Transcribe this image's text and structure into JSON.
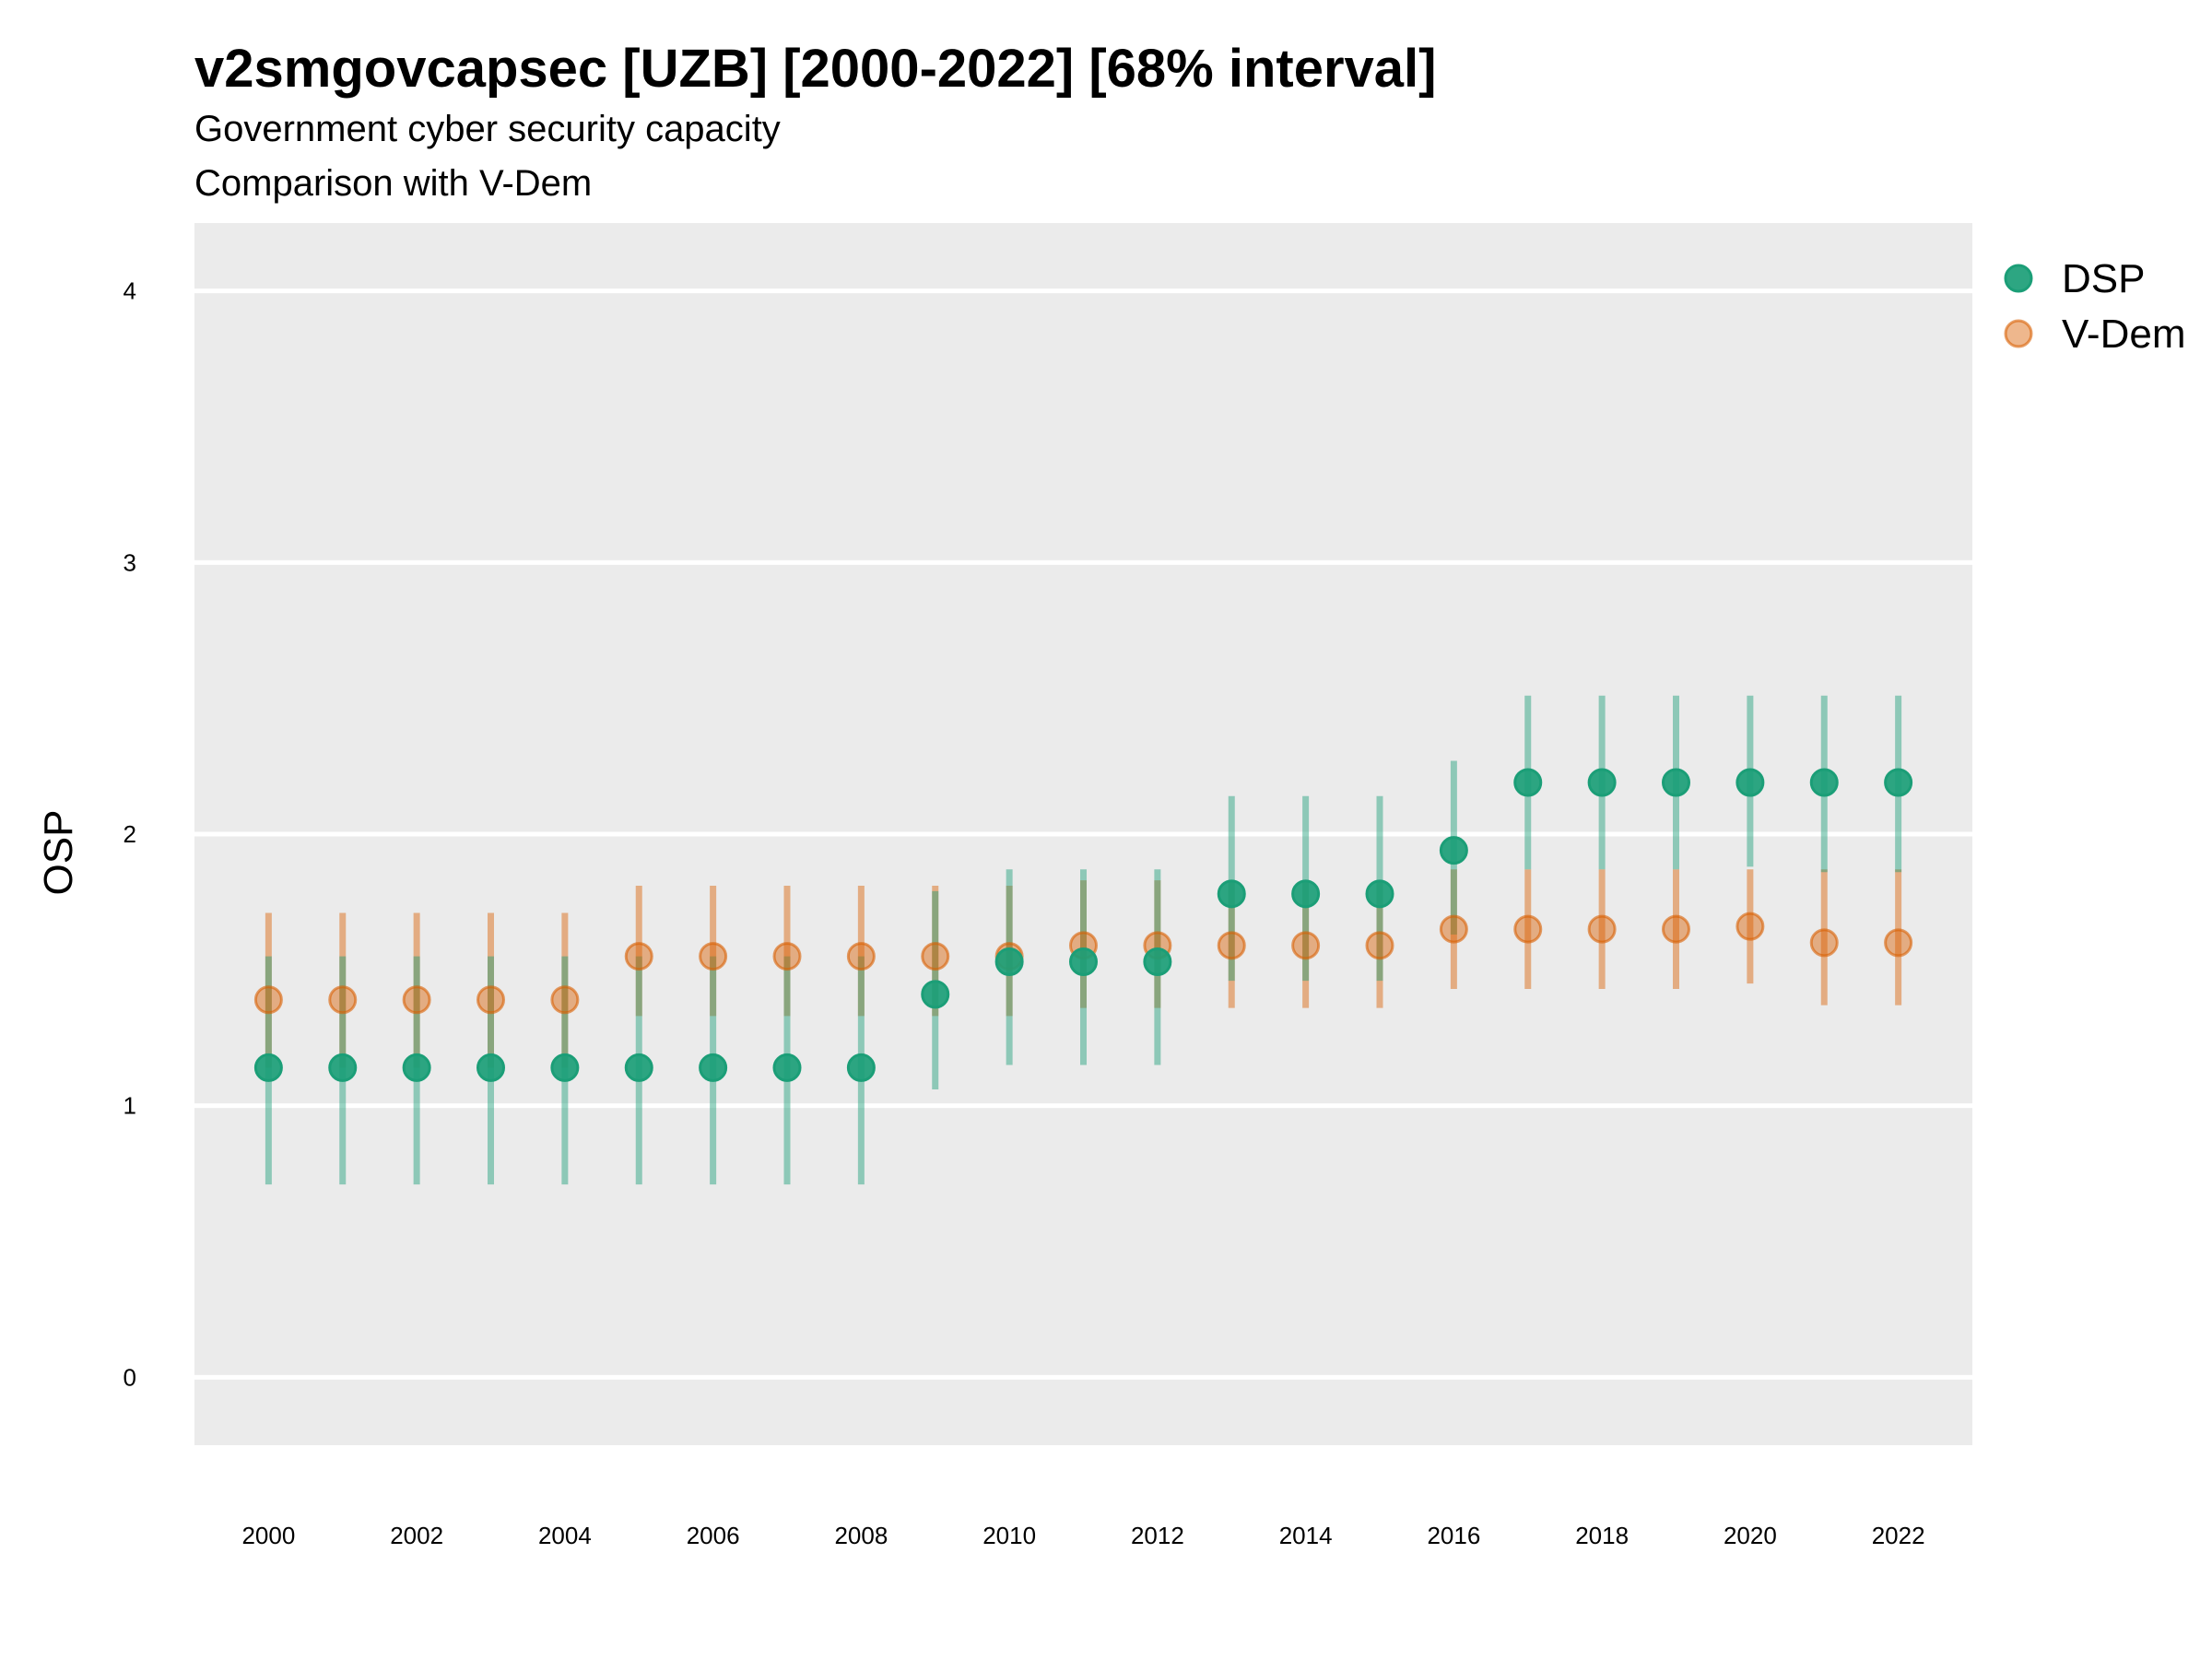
{
  "chart_data": {
    "type": "scatter",
    "title": "v2smgovcapsec [UZB] [2000-2022] [68% interval]",
    "subtitle": "Government cyber security capacity",
    "subtitle2": "Comparison with V-Dem",
    "xlabel": "",
    "ylabel": "OSP",
    "xlim": [
      1999,
      2023
    ],
    "ylim": [
      -0.25,
      4.25
    ],
    "x_ticks": [
      "2000",
      "2002",
      "2004",
      "2006",
      "2008",
      "2010",
      "2012",
      "2014",
      "2016",
      "2018",
      "2020",
      "2022"
    ],
    "y_ticks": [
      "0",
      "1",
      "2",
      "3",
      "4"
    ],
    "grid": true,
    "legend_position": "right",
    "x": [
      2000,
      2001,
      2002,
      2003,
      2004,
      2005,
      2006,
      2007,
      2008,
      2009,
      2010,
      2011,
      2012,
      2013,
      2014,
      2015,
      2016,
      2017,
      2018,
      2019,
      2020,
      2021,
      2022
    ],
    "series": [
      {
        "name": "DSP",
        "color": "#1b9e77",
        "values": [
          1.14,
          1.14,
          1.14,
          1.14,
          1.14,
          1.14,
          1.14,
          1.14,
          1.14,
          1.41,
          1.53,
          1.53,
          1.53,
          1.78,
          1.78,
          1.78,
          1.94,
          2.19,
          2.19,
          2.19,
          2.19,
          2.19,
          2.19
        ],
        "lower": [
          0.71,
          0.71,
          0.71,
          0.71,
          0.71,
          0.71,
          0.71,
          0.71,
          0.71,
          1.06,
          1.15,
          1.15,
          1.15,
          1.46,
          1.46,
          1.46,
          1.63,
          1.87,
          1.87,
          1.87,
          1.88,
          1.86,
          1.86
        ],
        "upper": [
          1.55,
          1.55,
          1.55,
          1.55,
          1.55,
          1.55,
          1.55,
          1.55,
          1.55,
          1.79,
          1.87,
          1.87,
          1.87,
          2.14,
          2.14,
          2.14,
          2.27,
          2.51,
          2.51,
          2.51,
          2.51,
          2.51,
          2.51
        ]
      },
      {
        "name": "V-Dem",
        "color": "#d95f02",
        "values": [
          1.39,
          1.39,
          1.39,
          1.39,
          1.39,
          1.55,
          1.55,
          1.55,
          1.55,
          1.55,
          1.55,
          1.59,
          1.59,
          1.59,
          1.59,
          1.59,
          1.65,
          1.65,
          1.65,
          1.65,
          1.66,
          1.6,
          1.6
        ],
        "lower": [
          1.14,
          1.14,
          1.14,
          1.14,
          1.14,
          1.33,
          1.33,
          1.33,
          1.33,
          1.33,
          1.33,
          1.36,
          1.36,
          1.36,
          1.36,
          1.36,
          1.43,
          1.43,
          1.43,
          1.43,
          1.45,
          1.37,
          1.37
        ],
        "upper": [
          1.71,
          1.71,
          1.71,
          1.71,
          1.71,
          1.81,
          1.81,
          1.81,
          1.81,
          1.81,
          1.81,
          1.83,
          1.83,
          1.83,
          1.83,
          1.83,
          1.87,
          1.87,
          1.87,
          1.87,
          1.87,
          1.87,
          1.87
        ]
      }
    ]
  }
}
